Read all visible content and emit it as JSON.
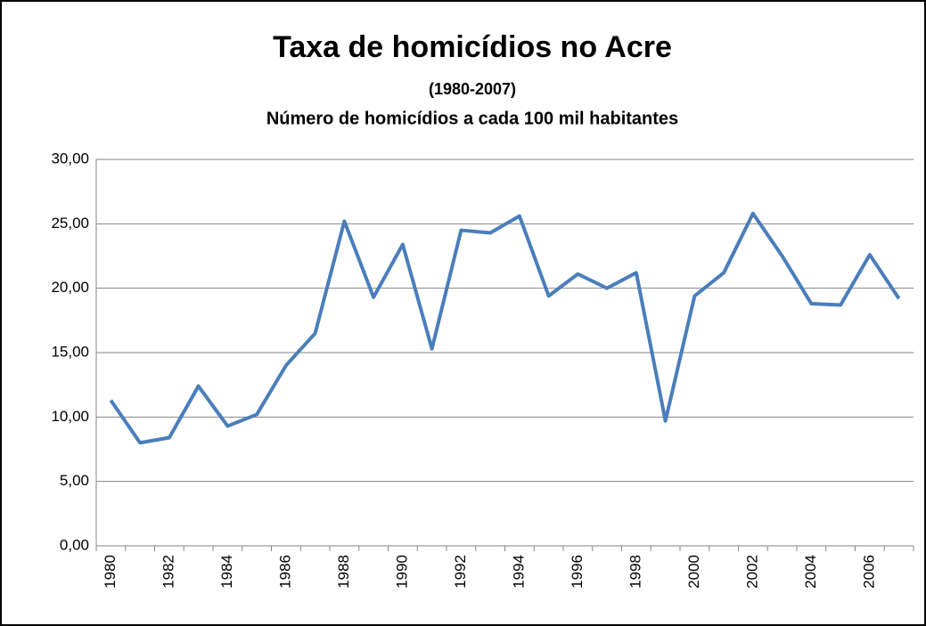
{
  "chart_data": {
    "type": "line",
    "title": "Taxa de homicídios no Acre",
    "subtitle": "(1980-2007)",
    "subtitle2": "Número de homicídios a cada 100 mil habitantes",
    "categories": [
      "1980",
      null,
      "1982",
      null,
      "1984",
      null,
      "1986",
      null,
      "1988",
      null,
      "1990",
      null,
      "1992",
      null,
      "1994",
      null,
      "1996",
      null,
      "1998",
      null,
      "2000",
      null,
      "2002",
      null,
      "2004",
      null,
      "2006",
      null
    ],
    "series": [
      {
        "name": "Taxa de homicídios",
        "color": "#4a7ebb",
        "values": [
          11.3,
          8.0,
          8.4,
          12.4,
          9.3,
          10.2,
          14.0,
          16.5,
          25.2,
          19.3,
          23.4,
          15.3,
          24.5,
          24.3,
          25.6,
          19.4,
          21.1,
          20.0,
          21.2,
          9.7,
          19.4,
          21.2,
          25.8,
          22.5,
          18.8,
          18.7,
          22.6,
          19.2
        ]
      }
    ],
    "ylim": [
      0,
      30
    ],
    "yticks": [
      {
        "value": 0,
        "label": "0,00"
      },
      {
        "value": 5,
        "label": "5,00"
      },
      {
        "value": 10,
        "label": "10,00"
      },
      {
        "value": 15,
        "label": "15,00"
      },
      {
        "value": 20,
        "label": "20,00"
      },
      {
        "value": 25,
        "label": "25,00"
      },
      {
        "value": 30,
        "label": "30,00"
      }
    ],
    "grid": true
  }
}
